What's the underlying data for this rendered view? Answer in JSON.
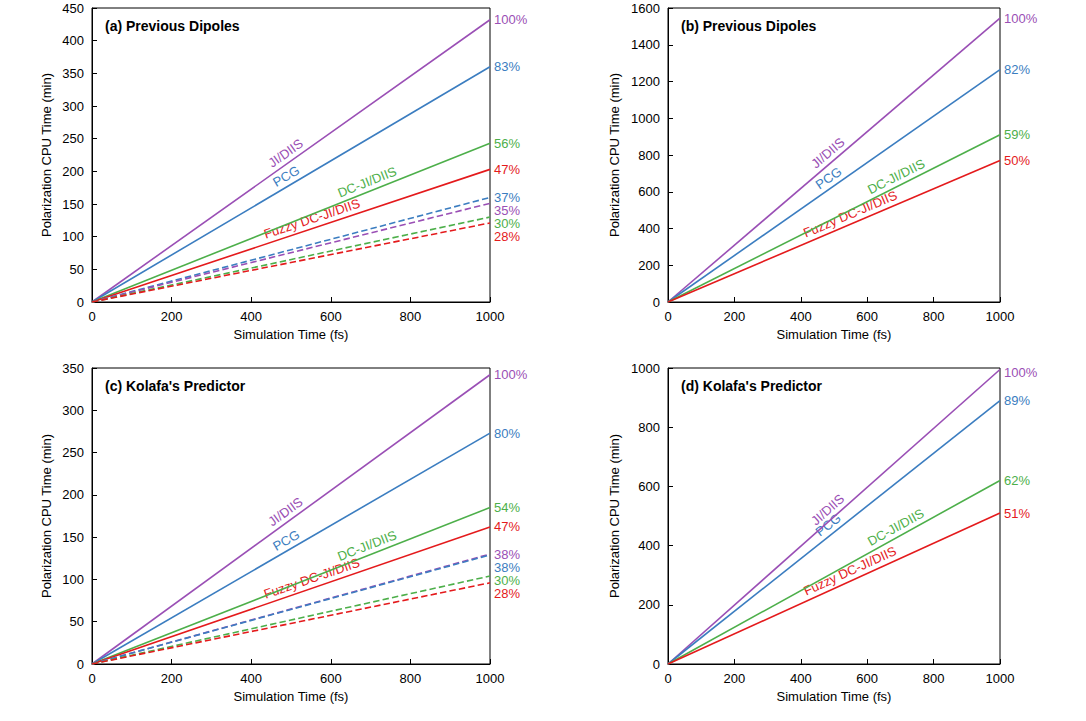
{
  "chart_data": [
    {
      "type": "line",
      "title": "(a) Previous Dipoles",
      "xlabel": "Simulation Time (fs)",
      "ylabel": "Polarization CPU Time (min)",
      "x": [
        0,
        1000
      ],
      "xlim": [
        0,
        1000
      ],
      "xticks": [
        0,
        200,
        400,
        600,
        800,
        1000
      ],
      "ylim": [
        0,
        450
      ],
      "yticks": [
        0,
        50,
        100,
        150,
        200,
        250,
        300,
        350,
        400,
        450
      ],
      "grid": false,
      "series": [
        {
          "name": "JI/DIIS",
          "color": "#9a4fb5",
          "line_style": "solid",
          "values": [
            0,
            432
          ],
          "end_label": "100%"
        },
        {
          "name": "PCG",
          "color": "#3b7dc0",
          "line_style": "solid",
          "values": [
            0,
            360
          ],
          "end_label": "83%"
        },
        {
          "name": "DC-JI/DIIS",
          "color": "#4daf4a",
          "line_style": "solid",
          "values": [
            0,
            243
          ],
          "end_label": "56%"
        },
        {
          "name": "Fuzzy DC-JI/DIIS",
          "color": "#e41a1c",
          "line_style": "solid",
          "values": [
            0,
            203
          ],
          "end_label": "47%"
        },
        {
          "color": "#3b7dc0",
          "line_style": "dashed",
          "values": [
            0,
            160
          ],
          "end_label": "37%"
        },
        {
          "color": "#9a4fb5",
          "line_style": "dashed",
          "values": [
            0,
            151
          ],
          "end_label": "35%"
        },
        {
          "color": "#4daf4a",
          "line_style": "dashed",
          "values": [
            0,
            130
          ],
          "end_label": "30%"
        },
        {
          "color": "#e41a1c",
          "line_style": "dashed",
          "values": [
            0,
            121
          ],
          "end_label": "28%"
        }
      ]
    },
    {
      "type": "line",
      "title": "(b) Previous Dipoles",
      "xlabel": "Simulation Time (fs)",
      "ylabel": "Polarization CPU Time (min)",
      "x": [
        0,
        1000
      ],
      "xlim": [
        0,
        1000
      ],
      "xticks": [
        0,
        200,
        400,
        600,
        800,
        1000
      ],
      "ylim": [
        0,
        1600
      ],
      "yticks": [
        0,
        200,
        400,
        600,
        800,
        1000,
        1200,
        1400,
        1600
      ],
      "grid": false,
      "series": [
        {
          "name": "JI/DIIS",
          "color": "#9a4fb5",
          "line_style": "solid",
          "values": [
            0,
            1545
          ],
          "end_label": "100%"
        },
        {
          "name": "PCG",
          "color": "#3b7dc0",
          "line_style": "solid",
          "values": [
            0,
            1265
          ],
          "end_label": "82%"
        },
        {
          "name": "DC-JI/DIIS",
          "color": "#4daf4a",
          "line_style": "solid",
          "values": [
            0,
            910
          ],
          "end_label": "59%"
        },
        {
          "name": "Fuzzy DC-JI/DIIS",
          "color": "#e41a1c",
          "line_style": "solid",
          "values": [
            0,
            770
          ],
          "end_label": "50%"
        }
      ]
    },
    {
      "type": "line",
      "title": "(c) Kolafa's Predictor",
      "xlabel": "Simulation Time (fs)",
      "ylabel": "Polarization CPU Time (min)",
      "x": [
        0,
        1000
      ],
      "xlim": [
        0,
        1000
      ],
      "xticks": [
        0,
        200,
        400,
        600,
        800,
        1000
      ],
      "ylim": [
        0,
        350
      ],
      "yticks": [
        0,
        50,
        100,
        150,
        200,
        250,
        300,
        350
      ],
      "grid": false,
      "series": [
        {
          "name": "JI/DIIS",
          "color": "#9a4fb5",
          "line_style": "solid",
          "values": [
            0,
            342
          ],
          "end_label": "100%"
        },
        {
          "name": "PCG",
          "color": "#3b7dc0",
          "line_style": "solid",
          "values": [
            0,
            273
          ],
          "end_label": "80%"
        },
        {
          "name": "DC-JI/DIIS",
          "color": "#4daf4a",
          "line_style": "solid",
          "values": [
            0,
            185
          ],
          "end_label": "54%"
        },
        {
          "name": "Fuzzy DC-JI/DIIS",
          "color": "#e41a1c",
          "line_style": "solid",
          "values": [
            0,
            162
          ],
          "end_label": "47%"
        },
        {
          "color": "#9a4fb5",
          "line_style": "dashed",
          "values": [
            0,
            130
          ],
          "end_label": "38%"
        },
        {
          "color": "#3b7dc0",
          "line_style": "dashed",
          "values": [
            0,
            129
          ],
          "end_label": "38%"
        },
        {
          "color": "#4daf4a",
          "line_style": "dashed",
          "values": [
            0,
            104
          ],
          "end_label": "30%"
        },
        {
          "color": "#e41a1c",
          "line_style": "dashed",
          "values": [
            0,
            96
          ],
          "end_label": "28%"
        }
      ]
    },
    {
      "type": "line",
      "title": "(d) Kolafa's Predictor",
      "xlabel": "Simulation Time (fs)",
      "ylabel": "Polarization CPU Time (min)",
      "x": [
        0,
        1000
      ],
      "xlim": [
        0,
        1000
      ],
      "xticks": [
        0,
        200,
        400,
        600,
        800,
        1000
      ],
      "ylim": [
        0,
        1000
      ],
      "yticks": [
        0,
        200,
        400,
        600,
        800,
        1000
      ],
      "grid": false,
      "series": [
        {
          "name": "JI/DIIS",
          "color": "#9a4fb5",
          "line_style": "solid",
          "values": [
            0,
            995
          ],
          "end_label": "100%"
        },
        {
          "name": "PCG",
          "color": "#3b7dc0",
          "line_style": "solid",
          "values": [
            0,
            890
          ],
          "end_label": "89%"
        },
        {
          "name": "DC-JI/DIIS",
          "color": "#4daf4a",
          "line_style": "solid",
          "values": [
            0,
            620
          ],
          "end_label": "62%"
        },
        {
          "name": "Fuzzy DC-JI/DIIS",
          "color": "#e41a1c",
          "line_style": "solid",
          "values": [
            0,
            510
          ],
          "end_label": "51%"
        }
      ]
    }
  ]
}
